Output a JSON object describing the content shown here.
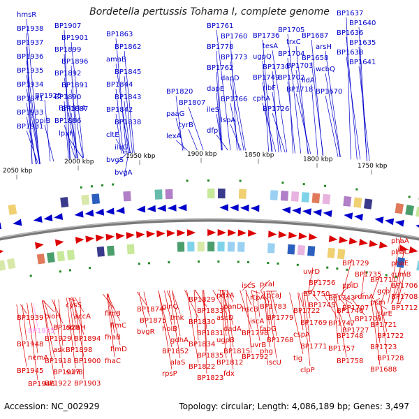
{
  "title": "Bordetella pertussis Tohama I, complete genome",
  "footer": {
    "accession": "Accession: NC_002929",
    "topology": "Topology: circular; Length: 4,086,189 bp; Genes: 3,497"
  },
  "colors": {
    "forward": "#0000cc",
    "reverse": "#dd0000",
    "backbone": "#7a7a7a",
    "highlight": "#ff99ff",
    "tick": "#228822"
  },
  "scale_labels": [
    "2050 kbp",
    "2000 kbp",
    "1950 kbp",
    "1900 kbp",
    "1850 kbp",
    "1800 kbp",
    "1750 kbp"
  ],
  "top_labels": [
    "hmsR",
    "BP1938",
    "BP1937",
    "BP1936",
    "BP1935",
    "BP1934",
    "BP1941",
    "BP1933",
    "BP1931",
    "BP1907",
    "BP1901",
    "BP1899",
    "BP1896",
    "BP1892",
    "BP1891",
    "BP1890",
    "BP1887",
    "BP1886",
    "BP1925",
    "BP1914",
    "ppiB",
    "lpxH",
    "BP1863",
    "BP1862",
    "amaB",
    "BP1845",
    "BP1844",
    "BP1843",
    "BP1842",
    "BP1838",
    "cltE",
    "ilvG",
    "bvgS",
    "bvgA",
    "BP1820",
    "BP1807",
    "paaG",
    "tyrB",
    "lexA",
    "BP1761",
    "BP1760",
    "BP1778",
    "BP1773",
    "BP1762",
    "dapD",
    "dapE",
    "BP1766",
    "ileS",
    "lspA",
    "dfp",
    "BP1736",
    "tesA",
    "ugpQ",
    "BP1730",
    "BP1749",
    "ribF",
    "cphA",
    "BP1726",
    "BP1705",
    "trxC",
    "BP1704",
    "BP1703",
    "BP1702",
    "BP1718",
    "BP1687",
    "arsH",
    "BP1658",
    "wcbQ",
    "lldA",
    "BP1670",
    "BP1637",
    "BP1640",
    "BP1636",
    "BP1635",
    "BP1638",
    "BP1641"
  ],
  "bottom_labels": [
    "BP1939",
    "BP1925",
    "BP1948",
    "nemA",
    "BP1945",
    "BP1946",
    "bioH",
    "BP1928",
    "BP1929",
    "ask",
    "BP1918",
    "BP1917",
    "BP1922",
    "cysS",
    "accA",
    "oplaH",
    "BP1894",
    "BP1898",
    "BP1900",
    "suhB",
    "BP1903",
    "fimB",
    "fimC",
    "fhaB",
    "fimD",
    "fhaC",
    "BP1874",
    "BP1875",
    "bvgR",
    "glnQ",
    "tmk",
    "holB",
    "gdhA",
    "BP1852",
    "alaS",
    "rpsP",
    "BP1829",
    "BP1833",
    "BP1830",
    "BP1831",
    "BP1834",
    "BP1835",
    "BP1822",
    "BP1823",
    "pdxA",
    "panD",
    "ascD",
    "dadA",
    "ugpB",
    "BP1815",
    "BP1812",
    "fdx",
    "iscS",
    "rtpA",
    "hscB",
    "iscA",
    "BP1798",
    "uvrB",
    "BP1792",
    "pcaI",
    "pcaJ",
    "BP1783",
    "BP1779",
    "fabG",
    "BP1768",
    "phg",
    "iscU",
    "BP1722",
    "BP1769",
    "cspA",
    "BP1771",
    "tig",
    "clpP",
    "uvrD",
    "BP1756",
    "BP1750",
    "BP1745",
    "BP1743",
    "BP1746",
    "BP1747",
    "BP1748",
    "BP1757",
    "BP1758",
    "BP1729",
    "BP1735",
    "ppiD",
    "rumA",
    "BP1707",
    "BP1709",
    "BP1727",
    "BP1711",
    "gcp",
    "pcm",
    "surE",
    "BP1721",
    "BP1722",
    "BP1723",
    "BP1728",
    "BP1688",
    "phaA",
    "phaC",
    "phaE",
    "cumB",
    "BP1706",
    "BP1708",
    "BP1712"
  ]
}
